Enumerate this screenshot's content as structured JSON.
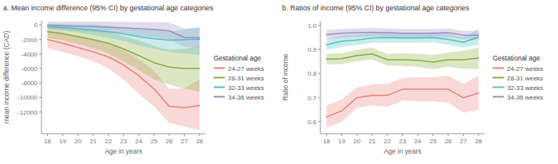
{
  "chart_data": [
    {
      "type": "line",
      "title": "a. Mean income difference (95% CI) by gestational age categories",
      "xlabel": "Age in years",
      "ylabel": "mean income difference (CAD)",
      "x": [
        18,
        19,
        20,
        21,
        22,
        23,
        24,
        25,
        26,
        27,
        28
      ],
      "xlim": [
        17.6,
        28.4
      ],
      "xticks": [
        18,
        19,
        20,
        21,
        22,
        23,
        24,
        25,
        26,
        27,
        28
      ],
      "ylim": [
        -15000,
        600
      ],
      "yticks": [
        0,
        -2000,
        -4000,
        -6000,
        -8000,
        -10000,
        -12000
      ],
      "legend": "right",
      "legend_title": "Gestational age",
      "series": [
        {
          "name": "24-27 weeks",
          "color": "#e8827a",
          "values": [
            -2000,
            -2500,
            -3100,
            -3700,
            -4400,
            -5500,
            -7000,
            -8800,
            -11200,
            -11400,
            -11100
          ],
          "lower": [
            -3200,
            -3700,
            -4300,
            -5000,
            -6000,
            -7500,
            -9500,
            -11200,
            -13500,
            -14000,
            -14500
          ],
          "upper": [
            -700,
            -1000,
            -1500,
            -2000,
            -2600,
            -3500,
            -4700,
            -6300,
            -8800,
            -8700,
            -7500
          ]
        },
        {
          "name": "28-31 weeks",
          "color": "#8aab3c",
          "values": [
            -900,
            -1200,
            -1600,
            -2000,
            -2500,
            -3300,
            -4200,
            -5200,
            -5800,
            -6000,
            -6000
          ],
          "lower": [
            -1800,
            -2100,
            -2600,
            -3200,
            -3900,
            -5000,
            -6200,
            -7500,
            -8200,
            -8800,
            -9200
          ],
          "upper": [
            200,
            -100,
            -400,
            -700,
            -1000,
            -1500,
            -2100,
            -2900,
            -3400,
            -3300,
            -2900
          ]
        },
        {
          "name": "32-33 weeks",
          "color": "#52bfc1",
          "values": [
            -200,
            -350,
            -500,
            -700,
            -900,
            -1200,
            -1600,
            -1900,
            -2100,
            -2000,
            -1950
          ],
          "lower": [
            -550,
            -750,
            -1050,
            -1400,
            -1750,
            -2200,
            -2800,
            -3300,
            -3700,
            -3900,
            -4100
          ],
          "upper": [
            150,
            100,
            100,
            100,
            -100,
            -300,
            -500,
            -700,
            -900,
            -600,
            -200
          ]
        },
        {
          "name": "34-36 weeks",
          "color": "#9b8ec4",
          "values": [
            -50,
            -100,
            -150,
            -200,
            -300,
            -400,
            -500,
            -600,
            -800,
            -1700,
            -1750
          ],
          "lower": [
            -550,
            -650,
            -800,
            -900,
            -1100,
            -1300,
            -1500,
            -1700,
            -2000,
            -3000,
            -3100
          ],
          "upper": [
            450,
            450,
            500,
            500,
            450,
            450,
            400,
            400,
            350,
            -500,
            -400
          ]
        }
      ]
    },
    {
      "type": "line",
      "title": "b. Ratios of income (95% CI) by gestational age categories",
      "xlabel": "Age in years",
      "ylabel": "Ratio of income",
      "x": [
        18,
        19,
        20,
        21,
        22,
        23,
        24,
        25,
        26,
        27,
        28
      ],
      "xlim": [
        17.6,
        28.4
      ],
      "xticks": [
        18,
        19,
        20,
        21,
        22,
        23,
        24,
        25,
        26,
        27,
        28
      ],
      "ylim": [
        0.55,
        1.02
      ],
      "yticks": [
        0.6,
        0.7,
        0.8,
        0.9,
        {
          "value": 1.0,
          "label": "1.0"
        }
      ],
      "legend": "right",
      "legend_title": "Gestational age",
      "series": [
        {
          "name": "24-27 weeks",
          "color": "#e8827a",
          "values": [
            0.62,
            0.645,
            0.7,
            0.71,
            0.71,
            0.735,
            0.735,
            0.735,
            0.735,
            0.7,
            0.72
          ],
          "lower": [
            0.575,
            0.6,
            0.658,
            0.668,
            0.662,
            0.688,
            0.685,
            0.685,
            0.678,
            0.638,
            0.648
          ],
          "upper": [
            0.668,
            0.692,
            0.742,
            0.755,
            0.758,
            0.782,
            0.785,
            0.785,
            0.792,
            0.758,
            0.792
          ]
        },
        {
          "name": "28-31 weeks",
          "color": "#8aab3c",
          "values": [
            0.86,
            0.862,
            0.875,
            0.882,
            0.858,
            0.858,
            0.855,
            0.848,
            0.858,
            0.858,
            0.865
          ],
          "lower": [
            0.838,
            0.84,
            0.852,
            0.858,
            0.835,
            0.832,
            0.828,
            0.818,
            0.828,
            0.82,
            0.82
          ],
          "upper": [
            0.882,
            0.885,
            0.898,
            0.908,
            0.882,
            0.885,
            0.882,
            0.878,
            0.888,
            0.895,
            0.91
          ]
        },
        {
          "name": "32-33 weeks",
          "color": "#52bfc1",
          "values": [
            0.92,
            0.935,
            0.94,
            0.948,
            0.95,
            0.948,
            0.948,
            0.95,
            0.942,
            0.93,
            0.952
          ],
          "lower": [
            0.898,
            0.912,
            0.918,
            0.928,
            0.928,
            0.928,
            0.928,
            0.93,
            0.92,
            0.908,
            0.92
          ],
          "upper": [
            0.942,
            0.958,
            0.962,
            0.968,
            0.972,
            0.968,
            0.968,
            0.972,
            0.965,
            0.952,
            0.985
          ]
        },
        {
          "name": "34-36 weeks",
          "color": "#9b8ec4",
          "values": [
            0.962,
            0.968,
            0.97,
            0.972,
            0.97,
            0.968,
            0.968,
            0.968,
            0.97,
            0.96,
            0.96
          ],
          "lower": [
            0.942,
            0.95,
            0.952,
            0.955,
            0.952,
            0.95,
            0.95,
            0.95,
            0.952,
            0.942,
            0.942
          ],
          "upper": [
            0.982,
            0.985,
            0.988,
            0.99,
            0.988,
            0.985,
            0.985,
            0.985,
            0.988,
            0.978,
            0.978
          ]
        }
      ]
    }
  ]
}
